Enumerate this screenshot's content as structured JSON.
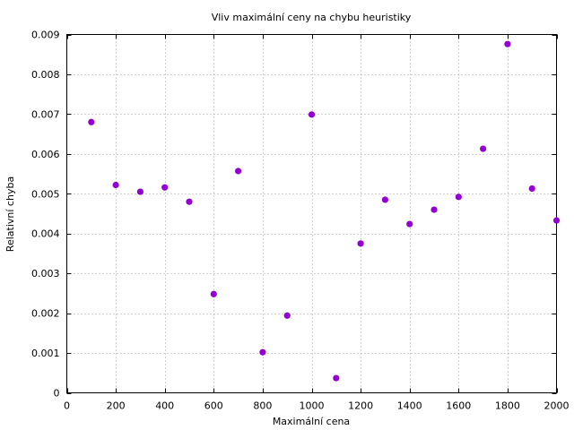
{
  "chart_data": {
    "type": "scatter",
    "title": "Vliv maximální ceny na chybu heuristiky",
    "xlabel": "Maximální cena",
    "ylabel": "Relativní chyba",
    "xlim": [
      0,
      2000
    ],
    "ylim": [
      0,
      0.009
    ],
    "xticks": [
      0,
      200,
      400,
      600,
      800,
      1000,
      1200,
      1400,
      1600,
      1800,
      2000
    ],
    "xtick_labels": [
      "0",
      "200",
      "400",
      "600",
      "800",
      "1000",
      "1200",
      "1400",
      "1600",
      "1800",
      "2000"
    ],
    "yticks": [
      0,
      0.001,
      0.002,
      0.003,
      0.004,
      0.005,
      0.006,
      0.007,
      0.008,
      0.009
    ],
    "ytick_labels": [
      "0",
      "0.001",
      "0.002",
      "0.003",
      "0.004",
      "0.005",
      "0.006",
      "0.007",
      "0.008",
      "0.009"
    ],
    "grid": true,
    "point_color": "#9400d3",
    "series": [
      {
        "x": [
          100,
          200,
          300,
          400,
          500,
          600,
          700,
          800,
          900,
          1000,
          1100,
          1200,
          1300,
          1400,
          1500,
          1600,
          1700,
          1800,
          1900,
          2000
        ],
        "y": [
          0.0068,
          0.00522,
          0.00505,
          0.00516,
          0.0048,
          0.00248,
          0.00557,
          0.00102,
          0.00194,
          0.00699,
          0.00037,
          0.00375,
          0.00485,
          0.00424,
          0.0046,
          0.00492,
          0.00613,
          0.00876,
          0.00513,
          0.00433
        ]
      }
    ]
  }
}
